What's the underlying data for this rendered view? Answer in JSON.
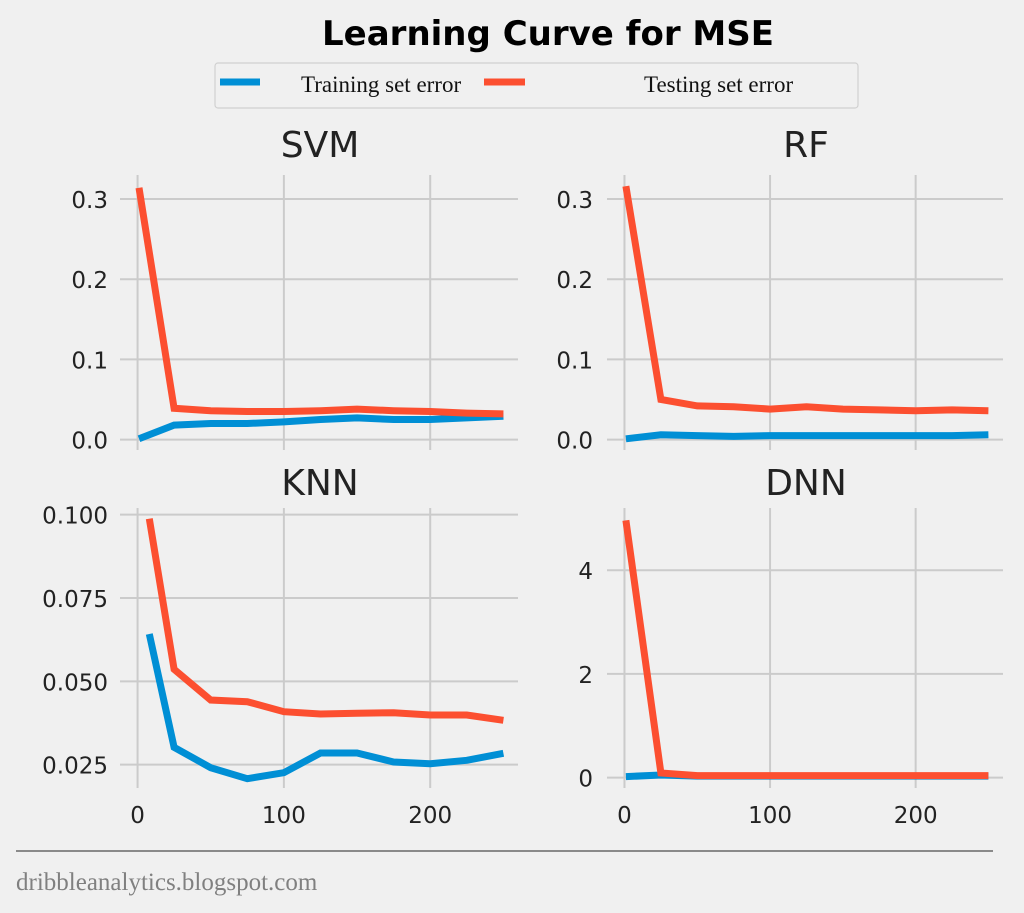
{
  "chart_data": {
    "type": "line",
    "title": "Learning Curve for MSE",
    "legend": {
      "placement": "top-center",
      "entries": [
        {
          "label": "Training set error",
          "color": "#008fd5"
        },
        {
          "label": "Testing set error",
          "color": "#fc4f30"
        }
      ]
    },
    "grid": true,
    "footer": "dribbleanalytics.blogspot.com",
    "panels": [
      {
        "title": "SVM",
        "xlim": [
          -12,
          260
        ],
        "ylim": [
          -0.013,
          0.33
        ],
        "xticks": [
          0,
          100,
          200
        ],
        "xtick_labels": [
          "0",
          "100",
          "200"
        ],
        "show_xtick_labels": false,
        "yticks": [
          0.0,
          0.1,
          0.2,
          0.3
        ],
        "ytick_labels": [
          "0.0",
          "0.1",
          "0.2",
          "0.3"
        ],
        "x": [
          1,
          25,
          50,
          75,
          100,
          125,
          150,
          175,
          200,
          225,
          250
        ],
        "series": [
          {
            "name": "Training set error",
            "values": [
              0.001,
              0.018,
              0.02,
              0.02,
              0.022,
              0.025,
              0.027,
              0.025,
              0.025,
              0.027,
              0.029
            ]
          },
          {
            "name": "Testing set error",
            "values": [
              0.314,
              0.039,
              0.036,
              0.035,
              0.035,
              0.036,
              0.038,
              0.036,
              0.035,
              0.033,
              0.032
            ]
          }
        ]
      },
      {
        "title": "RF",
        "xlim": [
          -12,
          260
        ],
        "ylim": [
          -0.013,
          0.33
        ],
        "xticks": [
          0,
          100,
          200
        ],
        "xtick_labels": [
          "0",
          "100",
          "200"
        ],
        "show_xtick_labels": false,
        "yticks": [
          0.0,
          0.1,
          0.2,
          0.3
        ],
        "ytick_labels": [
          "0.0",
          "0.1",
          "0.2",
          "0.3"
        ],
        "x": [
          1,
          25,
          50,
          75,
          100,
          125,
          150,
          175,
          200,
          225,
          250
        ],
        "series": [
          {
            "name": "Training set error",
            "values": [
              0.001,
              0.006,
              0.005,
              0.004,
              0.005,
              0.005,
              0.005,
              0.005,
              0.005,
              0.005,
              0.006
            ]
          },
          {
            "name": "Testing set error",
            "values": [
              0.316,
              0.05,
              0.042,
              0.041,
              0.038,
              0.041,
              0.038,
              0.037,
              0.036,
              0.037,
              0.036
            ]
          }
        ]
      },
      {
        "title": "KNN",
        "xlim": [
          -12,
          260
        ],
        "ylim": [
          0.018,
          0.102
        ],
        "xticks": [
          0,
          100,
          200
        ],
        "xtick_labels": [
          "0",
          "100",
          "200"
        ],
        "show_xtick_labels": true,
        "yticks": [
          0.025,
          0.05,
          0.075,
          0.1
        ],
        "ytick_labels": [
          "0.025",
          "0.050",
          "0.075",
          "0.100"
        ],
        "x": [
          8,
          25,
          50,
          75,
          100,
          125,
          150,
          175,
          200,
          225,
          250
        ],
        "series": [
          {
            "name": "Training set error",
            "values": [
              0.0642,
              0.0302,
              0.0241,
              0.0208,
              0.0226,
              0.0285,
              0.0285,
              0.0258,
              0.0253,
              0.0263,
              0.0284
            ]
          },
          {
            "name": "Testing set error",
            "values": [
              0.0988,
              0.0536,
              0.0444,
              0.0439,
              0.0409,
              0.0402,
              0.0404,
              0.0406,
              0.0399,
              0.0399,
              0.0383
            ]
          }
        ]
      },
      {
        "title": "DNN",
        "xlim": [
          -12,
          260
        ],
        "ylim": [
          -0.2,
          5.2
        ],
        "xticks": [
          0,
          100,
          200
        ],
        "xtick_labels": [
          "0",
          "100",
          "200"
        ],
        "show_xtick_labels": true,
        "yticks": [
          0,
          2,
          4
        ],
        "ytick_labels": [
          "0",
          "2",
          "4"
        ],
        "x": [
          1,
          25,
          50,
          75,
          100,
          125,
          150,
          175,
          200,
          225,
          250
        ],
        "series": [
          {
            "name": "Training set error",
            "values": [
              0.02,
              0.05,
              0.03,
              0.03,
              0.03,
              0.03,
              0.03,
              0.03,
              0.03,
              0.03,
              0.03
            ]
          },
          {
            "name": "Testing set error",
            "values": [
              4.96,
              0.09,
              0.04,
              0.04,
              0.04,
              0.04,
              0.04,
              0.04,
              0.04,
              0.04,
              0.04
            ]
          }
        ]
      }
    ]
  }
}
